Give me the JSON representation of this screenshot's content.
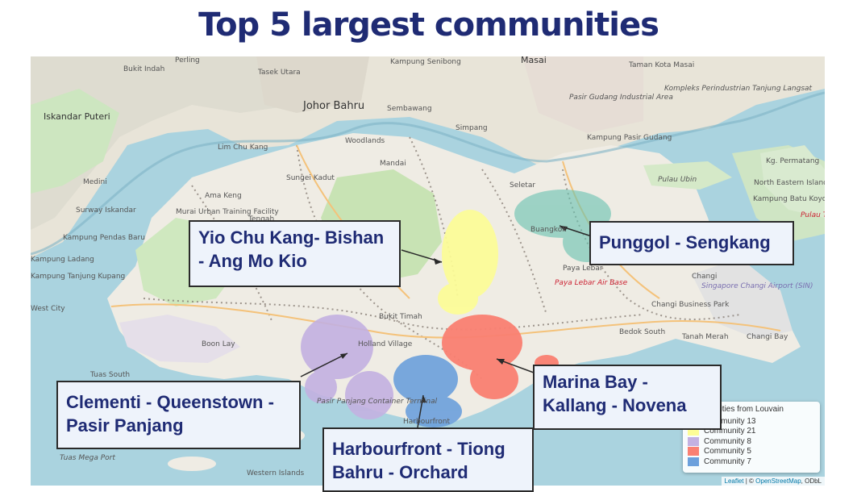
{
  "title": "Top 5 largest communities",
  "callouts": {
    "ycm": [
      "Yio Chu Kang- Bishan",
      "- Ang Mo Kio"
    ],
    "punggol": [
      "Punggol - Sengkang"
    ],
    "marina": [
      "Marina Bay -",
      "Kallang - Novena"
    ],
    "clementi": [
      "Clementi - Queenstown -",
      "Pasir Panjang"
    ],
    "harbour": [
      "Harbourfront - Tiong",
      "Bahru - Orchard"
    ]
  },
  "legend": {
    "title": "Communities from Louvain",
    "items": [
      {
        "label": "Community 13",
        "color": "#fdfd96"
      },
      {
        "label": "Community 21",
        "color": "#fdfd96"
      },
      {
        "label": "Community 8",
        "color": "#c3b1e1"
      },
      {
        "label": "Community 5",
        "color": "#fa8072"
      },
      {
        "label": "Community 7",
        "color": "#6ca0dc"
      }
    ]
  },
  "attribution": {
    "leaflet": "Leaflet",
    "sep": " | © ",
    "osm": "OpenStreetMap",
    "tail": ", ODbL"
  },
  "place_labels": [
    "Perling",
    "Bukit Indah",
    "Iskandar Puteri",
    "Johor Bahru",
    "Tasek Utara",
    "Kampung Senibong",
    "Masai",
    "Taman Kota Masai",
    "Pasir Gudang Industrial Area",
    "Kompleks Perindustrian Tanjung Langsat",
    "Kampung Pasir Gudang",
    "Lim Chu Kang",
    "Woodlands",
    "Sembawang",
    "Simpang",
    "Mandai",
    "Sungei Kadut",
    "Medini",
    "Surway Iskandar",
    "Kampung Pendas Baru",
    "Kampung Ladang",
    "Kampung Tanjung Kupang",
    "Ama Keng",
    "Murai Urban Training Facility",
    "Tengah",
    "Seletar",
    "Pulau Ubin",
    "Kg. Permatang",
    "North Eastern Islands",
    "Kampung Batu Koyok",
    "Pulau Tekong",
    "Buangkok",
    "Paya Lebar",
    "Paya Lebar Air Base",
    "Changi",
    "Singapore Changi Airport (SIN)",
    "Changi Business Park",
    "Bedok South",
    "Tanah Merah",
    "Changi Bay",
    "Bukit Timah",
    "Holland Village",
    "Tuas South",
    "Pasir Panjang Container Terminal",
    "Tuas Mega Port",
    "Western Islands",
    "Harbourfront",
    "Boon Lay",
    "West City"
  ]
}
